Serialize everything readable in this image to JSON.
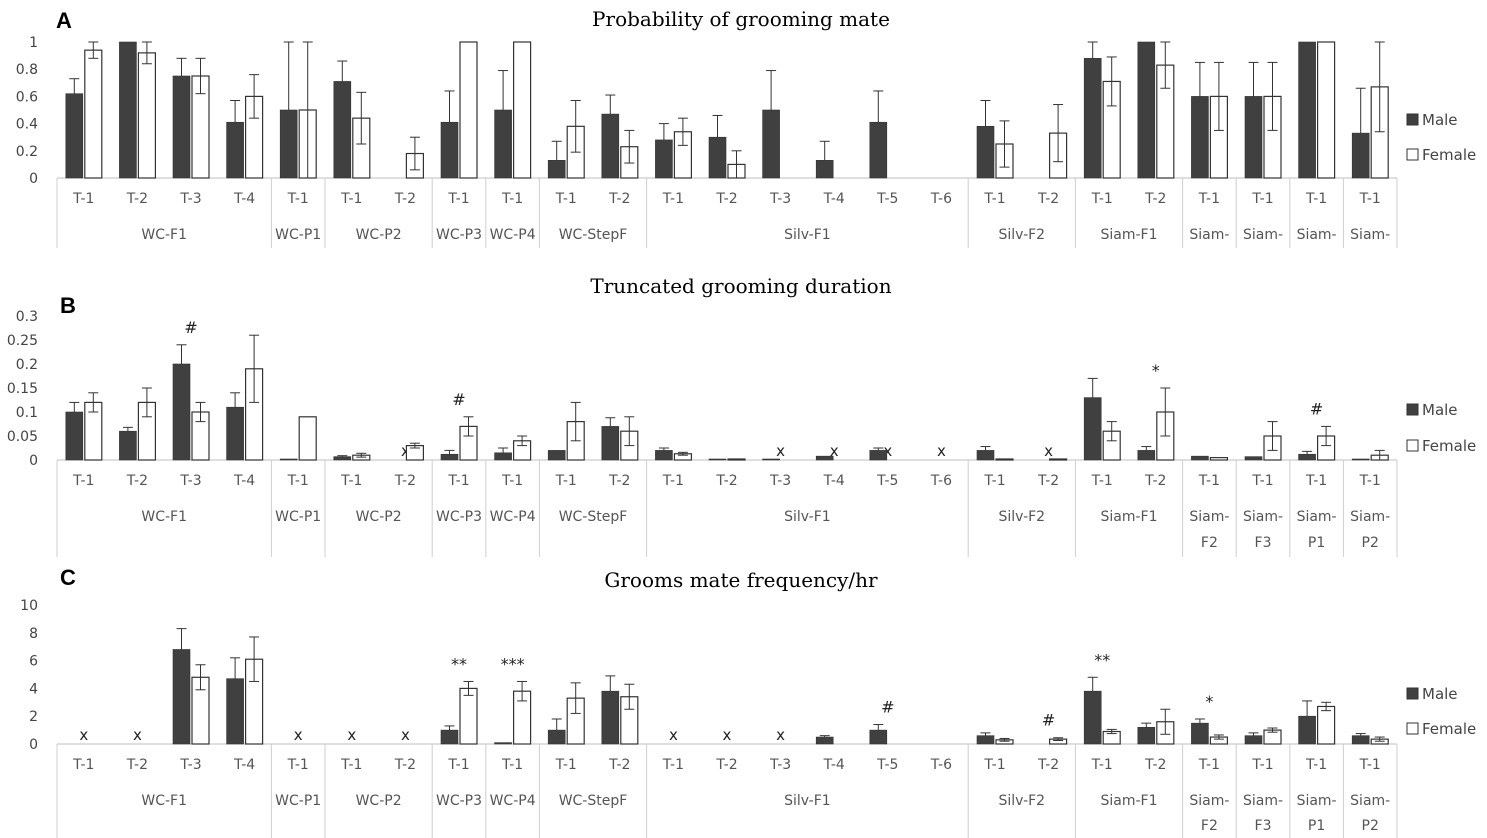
{
  "chart_data": [
    {
      "panel": "A",
      "type": "bar",
      "title": "Probability  of grooming  mate",
      "ylim": [
        0,
        1
      ],
      "yticks": [
        "0",
        "0.2",
        "0.4",
        "0.6",
        "0.8",
        "1"
      ],
      "legend": {
        "position": "right",
        "entries": [
          "Male",
          "Female"
        ]
      },
      "groups": [
        {
          "label": "WC-F1",
          "categories": [
            "T-1",
            "T-2",
            "T-3",
            "T-4"
          ]
        },
        {
          "label": "WC-P1",
          "categories": [
            "T-1"
          ]
        },
        {
          "label": "WC-P2",
          "categories": [
            "T-1",
            "T-2"
          ]
        },
        {
          "label": "WC-P3",
          "categories": [
            "T-1"
          ]
        },
        {
          "label": "WC-P4",
          "categories": [
            "T-1"
          ]
        },
        {
          "label": "WC-StepF",
          "categories": [
            "T-1",
            "T-2"
          ]
        },
        {
          "label": "Silv-F1",
          "categories": [
            "T-1",
            "T-2",
            "T-3",
            "T-4",
            "T-5",
            "T-6"
          ]
        },
        {
          "label": "Silv-F2",
          "categories": [
            "T-1",
            "T-2"
          ]
        },
        {
          "label": "Siam-F1",
          "categories": [
            "T-1",
            "T-2"
          ]
        },
        {
          "label": "Siam-",
          "categories": [
            "T-1"
          ]
        },
        {
          "label": "Siam-",
          "categories": [
            "T-1"
          ]
        },
        {
          "label": "Siam-",
          "categories": [
            "T-1"
          ]
        },
        {
          "label": "Siam-",
          "categories": [
            "T-1"
          ]
        }
      ],
      "series": [
        {
          "name": "Male",
          "values": [
            0.62,
            1.0,
            0.75,
            0.41,
            0.5,
            0.71,
            null,
            0.41,
            0.5,
            0.13,
            0.47,
            0.28,
            0.3,
            0.5,
            0.13,
            0.41,
            null,
            0.38,
            null,
            0.88,
            1.0,
            0.6,
            0.6,
            1.0,
            0.33
          ],
          "errors": [
            0.11,
            0,
            0.13,
            0.16,
            0.5,
            0.15,
            0,
            0.23,
            0.29,
            0.14,
            0.14,
            0.12,
            0.16,
            0.29,
            0.14,
            0.23,
            0,
            0.19,
            0,
            0.12,
            0,
            0.25,
            0.25,
            0,
            0.33
          ]
        },
        {
          "name": "Female",
          "values": [
            0.94,
            0.92,
            0.75,
            0.6,
            0.5,
            0.44,
            0.18,
            1.0,
            1.0,
            0.38,
            0.23,
            0.34,
            0.1,
            null,
            null,
            null,
            null,
            0.25,
            0.33,
            0.71,
            0.83,
            0.6,
            0.6,
            1.0,
            0.67
          ],
          "errors": [
            0.06,
            0.08,
            0.13,
            0.16,
            0.5,
            0.19,
            0.12,
            0,
            0,
            0.19,
            0.12,
            0.1,
            0.1,
            0,
            0,
            0,
            0,
            0.17,
            0.21,
            0.18,
            0.17,
            0.25,
            0.25,
            0,
            0.33
          ]
        }
      ],
      "annotations": []
    },
    {
      "panel": "B",
      "type": "bar",
      "title": "Truncated  grooming  duration",
      "ylim": [
        0,
        0.3
      ],
      "yticks": [
        "0",
        "0.05",
        "0.1",
        "0.15",
        "0.2",
        "0.25",
        "0.3"
      ],
      "legend": {
        "position": "right",
        "entries": [
          "Male",
          "Female"
        ]
      },
      "groups": [
        {
          "label": "WC-F1",
          "categories": [
            "T-1",
            "T-2",
            "T-3",
            "T-4"
          ]
        },
        {
          "label": "WC-P1",
          "categories": [
            "T-1"
          ]
        },
        {
          "label": "WC-P2",
          "categories": [
            "T-1",
            "T-2"
          ]
        },
        {
          "label": "WC-P3",
          "categories": [
            "T-1"
          ]
        },
        {
          "label": "WC-P4",
          "categories": [
            "T-1"
          ]
        },
        {
          "label": "WC-StepF",
          "categories": [
            "T-1",
            "T-2"
          ]
        },
        {
          "label": "Silv-F1",
          "categories": [
            "T-1",
            "T-2",
            "T-3",
            "T-4",
            "T-5",
            "T-6"
          ]
        },
        {
          "label": "Silv-F2",
          "categories": [
            "T-1",
            "T-2"
          ]
        },
        {
          "label": "Siam-F1",
          "categories": [
            "T-1",
            "T-2"
          ]
        },
        {
          "label": "Siam-\nF2",
          "categories": [
            "T-1"
          ]
        },
        {
          "label": "Siam-\nF3",
          "categories": [
            "T-1"
          ]
        },
        {
          "label": "Siam-\nP1",
          "categories": [
            "T-1"
          ]
        },
        {
          "label": "Siam-\nP2",
          "categories": [
            "T-1"
          ]
        }
      ],
      "series": [
        {
          "name": "Male",
          "values": [
            0.1,
            0.06,
            0.2,
            0.11,
            0.002,
            0.007,
            null,
            0.012,
            0.015,
            0.02,
            0.07,
            0.02,
            0.002,
            0.002,
            0.008,
            0.02,
            null,
            0.02,
            null,
            0.13,
            0.02,
            0.008,
            0.007,
            0.012,
            0.002
          ],
          "errors": [
            0.02,
            0.008,
            0.04,
            0.03,
            0,
            0.002,
            0,
            0.008,
            0.01,
            0,
            0.018,
            0.005,
            0,
            0,
            0,
            0.005,
            0,
            0.008,
            0,
            0.04,
            0.008,
            0,
            0,
            0.006,
            0
          ],
          "marks": [
            null,
            null,
            null,
            null,
            null,
            null,
            "x",
            null,
            null,
            null,
            null,
            null,
            null,
            "x",
            "x",
            "x",
            "x",
            null,
            "x",
            null,
            null,
            null,
            null,
            null,
            null
          ]
        },
        {
          "name": "Female",
          "values": [
            0.12,
            0.12,
            0.1,
            0.19,
            0.09,
            0.01,
            0.03,
            0.07,
            0.04,
            0.08,
            0.06,
            0.013,
            0.002,
            null,
            null,
            null,
            null,
            0.002,
            0.002,
            0.06,
            0.1,
            0.005,
            0.05,
            0.05,
            0.01
          ],
          "errors": [
            0.02,
            0.03,
            0.02,
            0.07,
            0,
            0.004,
            0.005,
            0.02,
            0.01,
            0.04,
            0.03,
            0.003,
            0,
            0,
            0,
            0,
            0,
            0,
            0,
            0.02,
            0.05,
            0,
            0.03,
            0.02,
            0.01
          ]
        }
      ],
      "annotations": [
        {
          "category_index": 2,
          "text": "#"
        },
        {
          "category_index": 7,
          "text": "#"
        },
        {
          "category_index": 20,
          "text": "*"
        },
        {
          "category_index": 23,
          "text": "#"
        }
      ]
    },
    {
      "panel": "C",
      "type": "bar",
      "title": "Grooms  mate  frequency/hr",
      "ylim": [
        0,
        10
      ],
      "yticks": [
        "0",
        "2",
        "4",
        "6",
        "8",
        "10"
      ],
      "legend": {
        "position": "right",
        "entries": [
          "Male",
          "Female"
        ]
      },
      "groups": [
        {
          "label": "WC-F1",
          "categories": [
            "T-1",
            "T-2",
            "T-3",
            "T-4"
          ]
        },
        {
          "label": "WC-P1",
          "categories": [
            "T-1"
          ]
        },
        {
          "label": "WC-P2",
          "categories": [
            "T-1",
            "T-2"
          ]
        },
        {
          "label": "WC-P3",
          "categories": [
            "T-1"
          ]
        },
        {
          "label": "WC-P4",
          "categories": [
            "T-1"
          ]
        },
        {
          "label": "WC-StepF",
          "categories": [
            "T-1",
            "T-2"
          ]
        },
        {
          "label": "Silv-F1",
          "categories": [
            "T-1",
            "T-2",
            "T-3",
            "T-4",
            "T-5",
            "T-6"
          ]
        },
        {
          "label": "Silv-F2",
          "categories": [
            "T-1",
            "T-2"
          ]
        },
        {
          "label": "Siam-F1",
          "categories": [
            "T-1",
            "T-2"
          ]
        },
        {
          "label": "Siam-\nF2",
          "categories": [
            "T-1"
          ]
        },
        {
          "label": "Siam-\nF3",
          "categories": [
            "T-1"
          ]
        },
        {
          "label": "Siam-\nP1",
          "categories": [
            "T-1"
          ]
        },
        {
          "label": "Siam-\nP2",
          "categories": [
            "T-1"
          ]
        }
      ],
      "series": [
        {
          "name": "Male",
          "values": [
            null,
            null,
            6.8,
            4.7,
            null,
            null,
            null,
            1.0,
            0.1,
            1.0,
            3.8,
            null,
            null,
            null,
            0.5,
            1.0,
            null,
            0.6,
            null,
            3.8,
            1.2,
            1.5,
            0.6,
            2.0,
            0.6
          ],
          "errors": [
            0,
            0,
            1.5,
            1.5,
            0,
            0,
            0,
            0.3,
            0,
            0.8,
            1.1,
            0,
            0,
            0,
            0.1,
            0.4,
            0,
            0.2,
            0,
            1.0,
            0.3,
            0.3,
            0.2,
            1.1,
            0.15
          ],
          "marks": [
            "x",
            "x",
            null,
            null,
            "x",
            "x",
            "x",
            null,
            null,
            null,
            null,
            "x",
            "x",
            "x",
            null,
            null,
            null,
            null,
            null,
            null,
            null,
            null,
            null,
            null,
            null
          ]
        },
        {
          "name": "Female",
          "values": [
            null,
            null,
            4.8,
            6.1,
            null,
            null,
            null,
            4.0,
            3.8,
            3.3,
            3.4,
            null,
            null,
            null,
            null,
            null,
            null,
            0.3,
            0.35,
            0.9,
            1.6,
            0.5,
            1.0,
            2.7,
            0.35
          ],
          "errors": [
            0,
            0,
            0.9,
            1.6,
            0,
            0,
            0,
            0.5,
            0.7,
            1.1,
            0.9,
            0,
            0,
            0,
            0,
            0,
            0,
            0.1,
            0.1,
            0.15,
            0.9,
            0.15,
            0.15,
            0.3,
            0.15
          ]
        }
      ],
      "annotations": [
        {
          "category_index": 7,
          "text": "**"
        },
        {
          "category_index": 8,
          "text": "***"
        },
        {
          "category_index": 15,
          "text": "#"
        },
        {
          "category_index": 18,
          "text": "#"
        },
        {
          "category_index": 19,
          "text": "**"
        },
        {
          "category_index": 21,
          "text": "*"
        }
      ]
    }
  ],
  "panel_labels": [
    "A",
    "B",
    "C"
  ]
}
